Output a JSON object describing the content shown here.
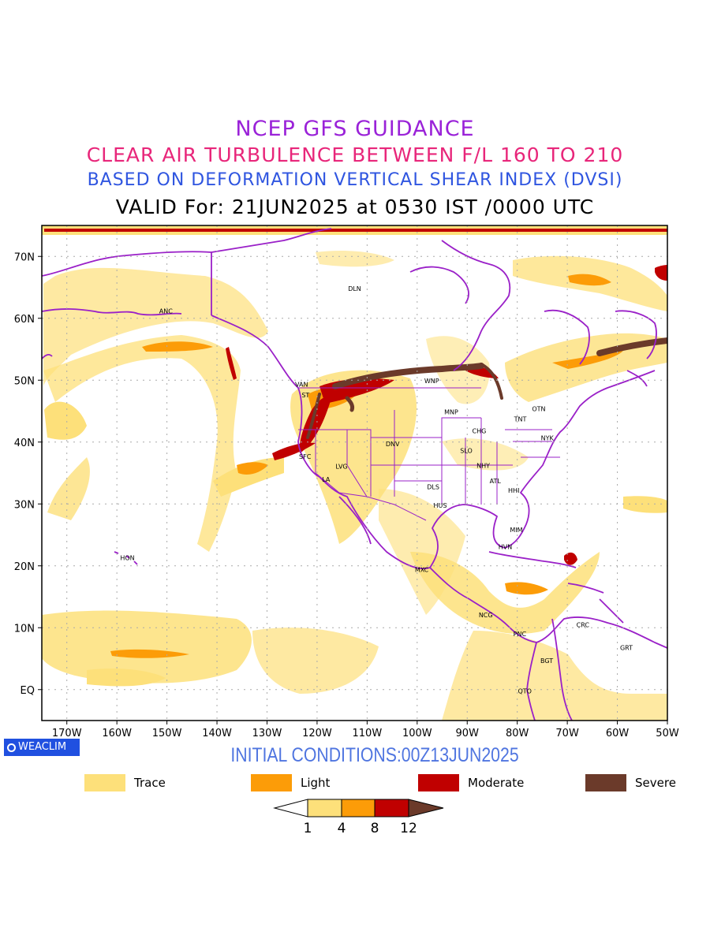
{
  "header": {
    "line1": "NCEP GFS GUIDANCE",
    "line2": "CLEAR AIR TURBULENCE BETWEEN F/L 160 TO 210",
    "line3": "BASED ON DEFORMATION VERTICAL SHEAR INDEX (DVSI)",
    "line4": "VALID For: 21JUN2025 at 0530 IST /0000 UTC"
  },
  "map": {
    "lon_range": [
      -175,
      -50
    ],
    "lat_range": [
      -5,
      75
    ],
    "lon_ticks": [
      "170W",
      "160W",
      "150W",
      "140W",
      "130W",
      "120W",
      "110W",
      "100W",
      "90W",
      "80W",
      "70W",
      "60W",
      "50W"
    ],
    "lat_ticks": [
      "70N",
      "60N",
      "50N",
      "40N",
      "30N",
      "20N",
      "10N",
      "EQ"
    ],
    "stations": [
      {
        "code": "DLN",
        "lon": -112.5,
        "lat": 64.8
      },
      {
        "code": "ANC",
        "lon": -150.2,
        "lat": 61.2
      },
      {
        "code": "VAN",
        "lon": -123.1,
        "lat": 49.3
      },
      {
        "code": "ST",
        "lon": -122.3,
        "lat": 47.6
      },
      {
        "code": "WNP",
        "lon": -97.1,
        "lat": 49.9
      },
      {
        "code": "MNP",
        "lon": -93.2,
        "lat": 44.9
      },
      {
        "code": "TNT",
        "lon": -79.4,
        "lat": 43.7
      },
      {
        "code": "OTN",
        "lon": -75.7,
        "lat": 45.4
      },
      {
        "code": "CHG",
        "lon": -87.6,
        "lat": 41.8
      },
      {
        "code": "NYK",
        "lon": -74.0,
        "lat": 40.7
      },
      {
        "code": "DNV",
        "lon": -104.9,
        "lat": 39.7
      },
      {
        "code": "SFC",
        "lon": -122.4,
        "lat": 37.7
      },
      {
        "code": "SLO",
        "lon": -90.2,
        "lat": 38.6
      },
      {
        "code": "LVG",
        "lon": -115.1,
        "lat": 36.1
      },
      {
        "code": "NHY",
        "lon": -86.8,
        "lat": 36.2
      },
      {
        "code": "LA",
        "lon": -118.2,
        "lat": 34.0
      },
      {
        "code": "ATL",
        "lon": -84.4,
        "lat": 33.7
      },
      {
        "code": "DLS",
        "lon": -96.8,
        "lat": 32.8
      },
      {
        "code": "HHI",
        "lon": -80.7,
        "lat": 32.2
      },
      {
        "code": "HUS",
        "lon": -95.4,
        "lat": 29.8
      },
      {
        "code": "MIM",
        "lon": -80.2,
        "lat": 25.8
      },
      {
        "code": "HVN",
        "lon": -82.4,
        "lat": 23.1
      },
      {
        "code": "HON",
        "lon": -157.9,
        "lat": 21.3
      },
      {
        "code": "MXC",
        "lon": -99.1,
        "lat": 19.4
      },
      {
        "code": "NCG",
        "lon": -86.3,
        "lat": 12.1
      },
      {
        "code": "CRC",
        "lon": -66.9,
        "lat": 10.5
      },
      {
        "code": "PNC",
        "lon": -79.5,
        "lat": 9.0
      },
      {
        "code": "GRT",
        "lon": -58.2,
        "lat": 6.8
      },
      {
        "code": "BGT",
        "lon": -74.1,
        "lat": 4.7
      },
      {
        "code": "QTO",
        "lon": -78.5,
        "lat": -0.2
      }
    ]
  },
  "badge": {
    "label": "WEACLIM"
  },
  "footer": {
    "initial_conditions": "INITIAL CONDITIONS:00Z13JUN2025"
  },
  "legend": {
    "items": [
      {
        "label": "Trace",
        "color": "#fde07a"
      },
      {
        "label": "Light",
        "color": "#fc9c08"
      },
      {
        "label": "Moderate",
        "color": "#c00000"
      },
      {
        "label": "Severe",
        "color": "#6b3a2a"
      }
    ]
  },
  "colorbar": {
    "ticks": [
      "1",
      "4",
      "8",
      "12"
    ],
    "colors": [
      "#ffffff",
      "#fde07a",
      "#fc9c08",
      "#c00000",
      "#6b3a2a"
    ]
  }
}
